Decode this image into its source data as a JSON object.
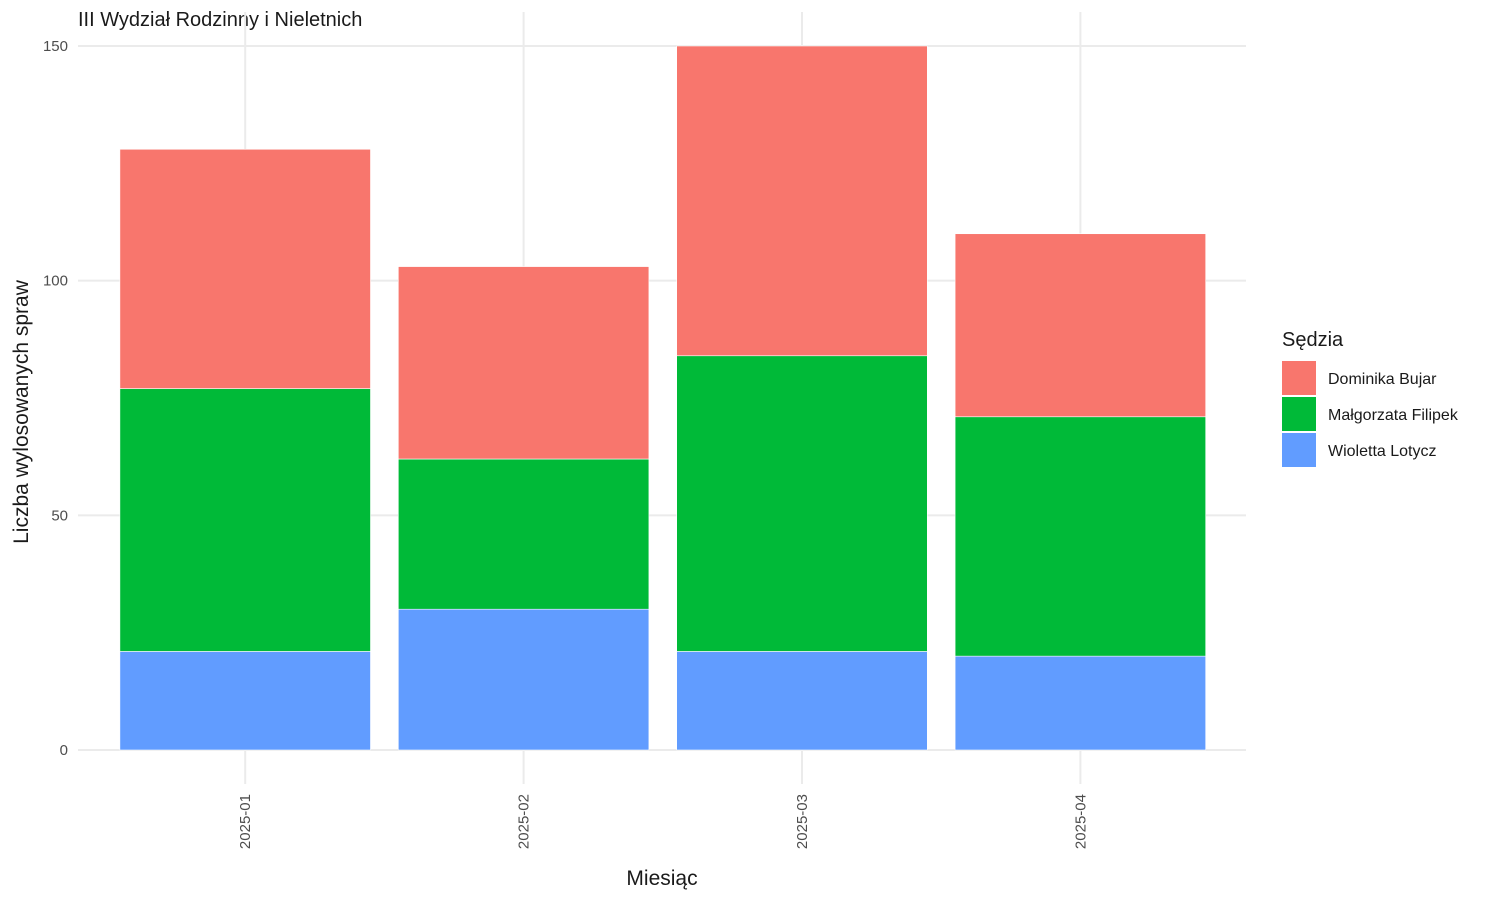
{
  "chart_data": {
    "type": "bar",
    "stacked": true,
    "title": "III Wydział Rodzinny i Nieletnich",
    "xlabel": "Miesiąc",
    "ylabel": "Liczba wylosowanych spraw",
    "categories": [
      "2025-01",
      "2025-02",
      "2025-03",
      "2025-04"
    ],
    "ylim": [
      0,
      150
    ],
    "yticks": [
      0,
      50,
      100,
      150
    ],
    "grid": true,
    "legend": {
      "title": "Sędzia",
      "position": "right"
    },
    "series": [
      {
        "name": "Dominika Bujar",
        "color": "#F8766D",
        "values": [
          51,
          41,
          66,
          39
        ]
      },
      {
        "name": "Małgorzata Filipek",
        "color": "#00BA38",
        "values": [
          56,
          32,
          63,
          51
        ]
      },
      {
        "name": "Wioletta Lotycz",
        "color": "#619CFF",
        "values": [
          21,
          30,
          21,
          20
        ]
      }
    ],
    "stack_order_bottom_to_top": [
      "Wioletta Lotycz",
      "Małgorzata Filipek",
      "Dominika Bujar"
    ]
  }
}
